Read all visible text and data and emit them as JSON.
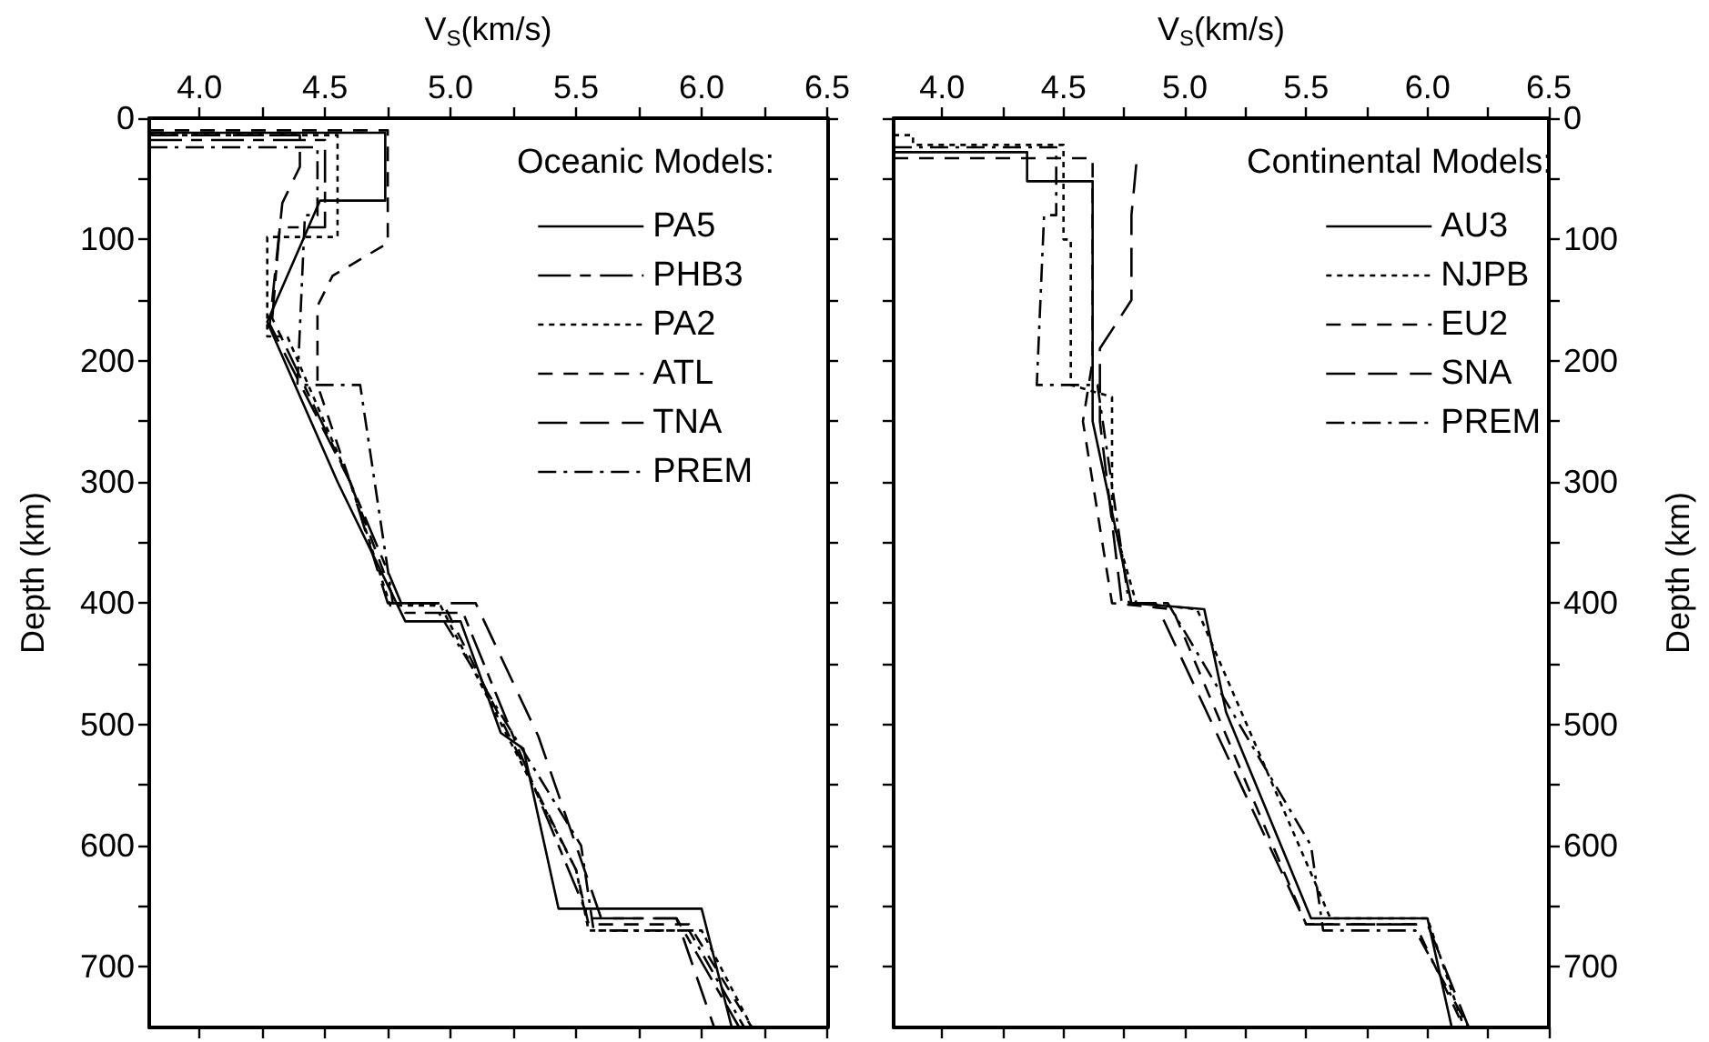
{
  "chart_data": [
    {
      "type": "line",
      "xlabel": "V$_{S}$(km/s)",
      "ylabel": "Depth (km)",
      "legend_title": "Oceanic Models:",
      "legend": "top right",
      "xlim": [
        3.8,
        6.5
      ],
      "xticks": [
        {
          "value": 4,
          "label": "4.0"
        },
        {
          "value": 4.25,
          "label": null
        },
        {
          "value": 4.5,
          "label": "4.5"
        },
        {
          "value": 4.75,
          "label": null
        },
        {
          "value": 5,
          "label": "5.0"
        },
        {
          "value": 5.25,
          "label": null
        },
        {
          "value": 5.5,
          "label": "5.5"
        },
        {
          "value": 5.75,
          "label": null
        },
        {
          "value": 6,
          "label": "6.0"
        },
        {
          "value": 6.25,
          "label": null
        },
        {
          "value": 6.5,
          "label": "6.5"
        }
      ],
      "ylim": [
        750,
        0
      ],
      "yticks": [
        0,
        {
          "value": 50,
          "label": null
        },
        100,
        {
          "value": 150,
          "label": null
        },
        200,
        {
          "value": 250,
          "label": null
        },
        300,
        {
          "value": 350,
          "label": null
        },
        400,
        {
          "value": 450,
          "label": null
        },
        500,
        {
          "value": 550,
          "label": null
        },
        600,
        {
          "value": 650,
          "label": null
        },
        700
      ],
      "series": [
        {
          "name": "PA5",
          "color": "#000000",
          "line_style": "solid",
          "x": [
            3.8,
            4.74,
            4.74,
            4.48,
            4.27,
            4.55,
            4.82,
            5.04,
            5.2,
            5.29,
            5.43,
            6.0,
            6.12
          ],
          "values": [
            12,
            12,
            68,
            68,
            168,
            300,
            415,
            415,
            507,
            520,
            652,
            652,
            750
          ]
        },
        {
          "name": "PHB3",
          "color": "#000000",
          "line_style": "long-short-dashed",
          "x": [
            3.8,
            4.5,
            4.5,
            4.32,
            4.29,
            4.6,
            4.82,
            5.05,
            5.25,
            5.55,
            5.9,
            6.15
          ],
          "values": [
            18,
            18,
            90,
            90,
            165,
            300,
            408,
            408,
            510,
            660,
            660,
            750
          ]
        },
        {
          "name": "PA2",
          "color": "#000000",
          "line_style": "dotted",
          "x": [
            3.8,
            4.55,
            4.55,
            4.27,
            4.27,
            4.35,
            4.6,
            4.76,
            4.96,
            5.5,
            5.55,
            6.0,
            6.2
          ],
          "values": [
            14,
            14,
            98,
            98,
            180,
            180,
            300,
            402,
            402,
            620,
            670,
            670,
            750
          ]
        },
        {
          "name": "ATL",
          "color": "#000000",
          "line_style": "dashed",
          "x": [
            3.8,
            4.75,
            4.75,
            4.53,
            4.47,
            4.47,
            4.6,
            4.78,
            4.97,
            5.5,
            5.55,
            5.95,
            6.2
          ],
          "values": [
            10,
            10,
            103,
            130,
            155,
            220,
            300,
            400,
            400,
            620,
            665,
            665,
            750
          ]
        },
        {
          "name": "TNA",
          "color": "#000000",
          "line_style": "long-dashed",
          "x": [
            3.8,
            4.4,
            4.4,
            4.33,
            4.28,
            4.6,
            4.75,
            5.1,
            5.35,
            5.6,
            5.9,
            6.05
          ],
          "values": [
            14,
            14,
            40,
            70,
            170,
            300,
            400,
            400,
            510,
            660,
            660,
            750
          ]
        },
        {
          "name": "PREM",
          "color": "#000000",
          "line_style": "dash-dot",
          "x": [
            3.8,
            4.47,
            4.47,
            4.42,
            4.39,
            4.64,
            4.77,
            4.93,
            5.52,
            5.57,
            5.95,
            6.17
          ],
          "values": [
            24,
            24,
            80,
            80,
            220,
            220,
            400,
            400,
            600,
            670,
            670,
            750
          ]
        }
      ]
    },
    {
      "type": "line",
      "xlabel": "V$_{S}$(km/s)",
      "y2label": "Depth (km)",
      "legend_title": "Continental Models:",
      "legend": "top right",
      "xlim": [
        3.8,
        6.5
      ],
      "xticks": [
        {
          "value": 4,
          "label": "4.0"
        },
        {
          "value": 4.25,
          "label": null
        },
        {
          "value": 4.5,
          "label": "4.5"
        },
        {
          "value": 4.75,
          "label": null
        },
        {
          "value": 5,
          "label": "5.0"
        },
        {
          "value": 5.25,
          "label": null
        },
        {
          "value": 5.5,
          "label": "5.5"
        },
        {
          "value": 5.75,
          "label": null
        },
        {
          "value": 6,
          "label": "6.0"
        },
        {
          "value": 6.25,
          "label": null
        },
        {
          "value": 6.5,
          "label": "6.5"
        }
      ],
      "y2lim": [
        750,
        0
      ],
      "y2ticks": [
        0,
        {
          "value": 50,
          "label": null
        },
        100,
        {
          "value": 150,
          "label": null
        },
        200,
        {
          "value": 250,
          "label": null
        },
        300,
        {
          "value": 350,
          "label": null
        },
        400,
        {
          "value": 450,
          "label": null
        },
        500,
        {
          "value": 550,
          "label": null
        },
        600,
        {
          "value": 650,
          "label": null
        },
        700
      ],
      "series": [
        {
          "name": "AU3",
          "color": "#000000",
          "line_style": "solid",
          "axis": "y2",
          "x": [
            3.8,
            4.35,
            4.35,
            4.62,
            4.62,
            4.78,
            5.08,
            5.17,
            5.52,
            6.0,
            6.1
          ],
          "values": [
            28,
            28,
            52,
            52,
            250,
            400,
            405,
            490,
            660,
            660,
            750
          ]
        },
        {
          "name": "NJPB",
          "color": "#000000",
          "line_style": "dotted",
          "axis": "y2",
          "x": [
            3.8,
            3.88,
            3.88,
            4.5,
            4.5,
            4.53,
            4.53,
            4.7,
            4.7,
            4.8,
            5.05,
            5.6,
            6.0,
            6.15
          ],
          "values": [
            14,
            14,
            22,
            22,
            100,
            100,
            220,
            230,
            330,
            400,
            405,
            660,
            660,
            750
          ]
        },
        {
          "name": "EU2",
          "color": "#000000",
          "line_style": "dashed",
          "axis": "y2",
          "x": [
            3.8,
            4.62,
            4.62,
            4.58,
            4.7,
            4.95,
            5.5,
            5.95,
            6.15
          ],
          "values": [
            33,
            33,
            200,
            250,
            400,
            405,
            665,
            665,
            750
          ]
        },
        {
          "name": "SNA",
          "color": "#000000",
          "line_style": "long-dashed",
          "axis": "y2",
          "x": [
            4.8,
            4.78,
            4.78,
            4.65,
            4.65,
            4.74,
            4.88,
            5.5,
            6.0,
            6.17
          ],
          "values": [
            38,
            80,
            150,
            190,
            250,
            400,
            400,
            665,
            665,
            750
          ]
        },
        {
          "name": "PREM",
          "color": "#000000",
          "line_style": "dash-dot",
          "axis": "y2",
          "x": [
            3.8,
            4.47,
            4.47,
            4.42,
            4.39,
            4.64,
            4.77,
            4.93,
            5.52,
            5.57,
            5.95,
            6.17
          ],
          "values": [
            24,
            24,
            80,
            80,
            220,
            220,
            400,
            400,
            600,
            670,
            670,
            750
          ]
        }
      ]
    }
  ]
}
